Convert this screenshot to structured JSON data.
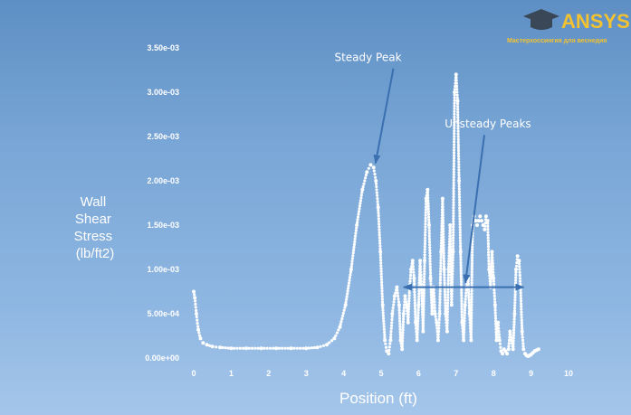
{
  "brand": {
    "name": "ANSYS",
    "tagline": "Мастерхоссингия для веснедия",
    "color": "#f2c230"
  },
  "chart_data": {
    "type": "scatter",
    "title": "",
    "xlabel": "Position (ft)",
    "ylabel_lines": [
      "Wall",
      "Shear",
      "Stress",
      "(lb/ft2)"
    ],
    "xlim": [
      0,
      10
    ],
    "ylim": [
      0,
      0.0035
    ],
    "x_ticks": [
      0,
      1,
      2,
      3,
      4,
      5,
      6,
      7,
      8,
      9,
      10
    ],
    "x_tick_labels": [
      "0",
      "1",
      "2",
      "3",
      "4",
      "5",
      "6",
      "7",
      "8",
      "9",
      "10"
    ],
    "y_ticks": [
      0,
      0.0005,
      0.001,
      0.0015,
      0.002,
      0.0025,
      0.003,
      0.0035
    ],
    "y_tick_labels": [
      "0.00e+00",
      "5.00e-04",
      "1.00e-03",
      "1.50e-03",
      "2.00e-03",
      "2.50e-03",
      "3.00e-03",
      "3.50e-03"
    ],
    "grid": false,
    "point_color": "#ffffff",
    "series": [
      {
        "x": [
          0.0,
          0.03,
          0.07,
          0.12,
          0.18,
          0.25,
          0.35,
          0.5,
          0.7,
          1.0,
          1.4,
          1.8,
          2.2,
          2.6,
          3.0,
          3.3,
          3.55,
          3.75,
          3.9,
          4.05,
          4.2,
          4.35,
          4.5,
          4.62,
          4.72,
          4.8,
          4.86,
          4.92,
          4.98,
          5.04,
          5.1,
          5.15,
          5.2,
          5.25,
          5.3,
          5.36,
          5.42,
          5.48,
          5.52,
          5.56,
          5.6,
          5.64,
          5.68,
          5.72,
          5.76,
          5.8,
          5.84,
          5.88,
          5.92,
          5.96,
          6.0,
          6.04,
          6.08,
          6.12,
          6.16,
          6.2,
          6.24,
          6.28,
          6.32,
          6.36,
          6.4,
          6.44,
          6.48,
          6.52,
          6.56,
          6.6,
          6.64,
          6.68,
          6.72,
          6.76,
          6.8,
          6.84,
          6.88,
          6.92,
          6.96,
          7.0,
          7.04,
          7.08,
          7.12,
          7.16,
          7.2,
          7.24,
          7.28,
          7.32,
          7.36,
          7.4,
          7.44,
          7.48,
          7.52,
          7.56,
          7.6,
          7.64,
          7.68,
          7.72,
          7.76,
          7.8,
          7.84,
          7.88,
          7.92,
          7.96,
          8.0,
          8.04,
          8.08,
          8.12,
          8.16,
          8.2,
          8.24,
          8.28,
          8.32,
          8.36,
          8.4,
          8.44,
          8.48,
          8.52,
          8.56,
          8.6,
          8.64,
          8.68,
          8.72,
          8.76,
          8.8,
          8.84,
          8.88,
          8.92,
          8.96,
          9.0,
          9.05,
          9.1,
          9.15,
          9.2
        ],
        "y": [
          0.00075,
          0.00068,
          0.0005,
          0.00032,
          0.00022,
          0.00017,
          0.00015,
          0.00013,
          0.00012,
          0.00011,
          0.00011,
          0.00011,
          0.00011,
          0.00011,
          0.00011,
          0.00012,
          0.00015,
          0.00022,
          0.00035,
          0.0006,
          0.001,
          0.0015,
          0.0019,
          0.0021,
          0.00218,
          0.00215,
          0.002,
          0.0017,
          0.0012,
          0.0006,
          0.0002,
          8e-05,
          5e-05,
          0.0002,
          0.0005,
          0.0007,
          0.0008,
          0.0006,
          0.0002,
          0.0001,
          0.0005,
          0.0007,
          0.0006,
          0.0004,
          0.0008,
          0.001,
          0.0011,
          0.0009,
          0.0004,
          0.0002,
          0.0006,
          0.0011,
          0.0008,
          0.0003,
          0.0011,
          0.0018,
          0.0019,
          0.0015,
          0.0009,
          0.0005,
          0.0008,
          0.0005,
          0.0004,
          0.0002,
          0.0005,
          0.0012,
          0.0018,
          0.001,
          0.0005,
          0.0003,
          0.001,
          0.0015,
          0.0006,
          0.0012,
          0.003,
          0.0032,
          0.0029,
          0.002,
          0.0012,
          0.0004,
          0.0002,
          0.0006,
          0.0008,
          0.0009,
          0.0005,
          0.0002,
          0.0015,
          0.0016,
          0.00155,
          0.0015,
          0.00155,
          0.0016,
          0.00155,
          0.0015,
          0.00145,
          0.0016,
          0.00155,
          0.001,
          0.0008,
          0.0012,
          0.0009,
          0.0006,
          0.0002,
          0.0004,
          0.0002,
          8e-05,
          5e-05,
          0.0001,
          8e-05,
          5e-05,
          0.0001,
          0.0003,
          0.0002,
          0.0001,
          0.0005,
          0.001,
          0.00115,
          0.0011,
          0.0008,
          0.0003,
          0.0001,
          5e-05,
          3e-05,
          2e-05,
          3e-05,
          4e-05,
          6e-05,
          8e-05,
          9e-05,
          0.0001
        ]
      }
    ],
    "annotations": [
      {
        "text": "Steady Peak",
        "x": 4.65,
        "y": 0.00335,
        "arrow_to": [
          4.85,
          0.0022
        ]
      },
      {
        "text": "Unsteady Peaks",
        "x": 7.85,
        "y": 0.0026,
        "arrow_to": [
          7.25,
          0.00085
        ],
        "range": [
          5.6,
          8.8
        ],
        "range_y": 0.0008
      }
    ]
  }
}
